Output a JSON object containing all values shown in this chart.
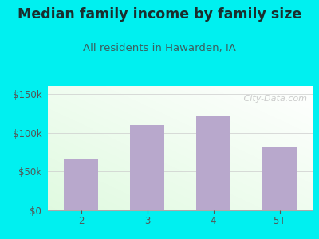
{
  "categories": [
    "2",
    "3",
    "4",
    "5+"
  ],
  "values": [
    67000,
    110000,
    122000,
    82000
  ],
  "bar_color": "#b8a8cc",
  "title": "Median family income by family size",
  "subtitle": "All residents in Hawarden, IA",
  "title_color": "#1a2e2e",
  "subtitle_color": "#3a6060",
  "outer_bg": "#00f0f0",
  "yticks": [
    0,
    50000,
    100000,
    150000
  ],
  "ytick_labels": [
    "$0",
    "$50k",
    "$100k",
    "$150k"
  ],
  "ylim": [
    0,
    160000
  ],
  "tick_color": "#555555",
  "watermark": " City-Data.com",
  "title_fontsize": 12.5,
  "subtitle_fontsize": 9.5
}
